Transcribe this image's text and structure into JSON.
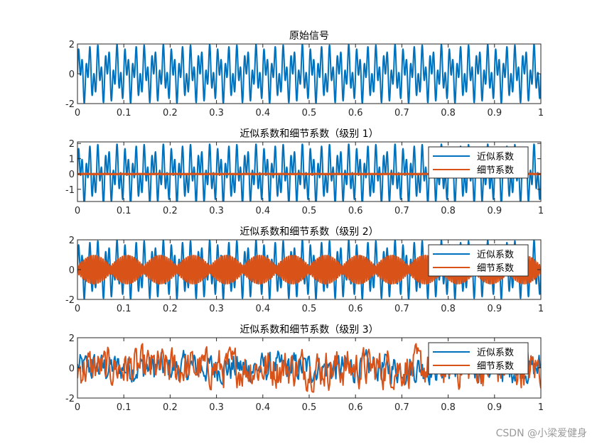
{
  "watermark": "CSDN @小梁爱健身",
  "colors": {
    "approx": "#0072BD",
    "detail": "#D95319",
    "axis": "#262626"
  },
  "chart_data": [
    {
      "type": "line",
      "title": "原始信号",
      "xlim": [
        0,
        1
      ],
      "ylim": [
        -2,
        2
      ],
      "xticks": [
        0,
        0.1,
        0.2,
        0.3,
        0.4,
        0.5,
        0.6,
        0.7,
        0.8,
        0.9,
        1
      ],
      "xtick_labels": [
        "0",
        "0.1",
        "0.2",
        "0.3",
        "0.4",
        "0.5",
        "0.6",
        "0.7",
        "0.8",
        "0.9",
        "1"
      ],
      "yticks": [
        -2,
        0,
        2
      ],
      "ytick_labels": [
        "-2",
        "0",
        "2"
      ],
      "legend": null,
      "series": [
        {
          "role": "approx",
          "style": "signal",
          "amplitude": 1.0,
          "frequencies_hz": [
            50,
            120
          ]
        }
      ]
    },
    {
      "type": "line",
      "title": "近似系数和细节系数（级别 1）",
      "xlim": [
        0,
        1
      ],
      "ylim": [
        -1.8,
        2.1
      ],
      "xticks": [
        0,
        0.1,
        0.2,
        0.3,
        0.4,
        0.5,
        0.6,
        0.7,
        0.8,
        0.9,
        1
      ],
      "xtick_labels": [
        "0",
        "0.1",
        "0.2",
        "0.3",
        "0.4",
        "0.5",
        "0.6",
        "0.7",
        "0.8",
        "0.9",
        "1"
      ],
      "yticks": [
        -1,
        0,
        1,
        2
      ],
      "ytick_labels": [
        "-1",
        "0",
        "1",
        "2"
      ],
      "legend": {
        "position": "top-right",
        "entries": [
          "近似系数",
          "细节系数"
        ]
      },
      "series": [
        {
          "name": "近似系数",
          "role": "approx",
          "style": "signal",
          "amplitude": 1.0,
          "frequencies_hz": [
            50,
            120
          ]
        },
        {
          "name": "细节系数",
          "role": "detail",
          "style": "flat",
          "amplitude": 0.04
        }
      ]
    },
    {
      "type": "line",
      "title": "近似系数和细节系数（级别 2）",
      "xlim": [
        0,
        1
      ],
      "ylim": [
        -2,
        2
      ],
      "xticks": [
        0,
        0.1,
        0.2,
        0.3,
        0.4,
        0.5,
        0.6,
        0.7,
        0.8,
        0.9,
        1
      ],
      "xtick_labels": [
        "0",
        "0.1",
        "0.2",
        "0.3",
        "0.4",
        "0.5",
        "0.6",
        "0.7",
        "0.8",
        "0.9",
        "1"
      ],
      "yticks": [
        -2,
        0,
        2
      ],
      "ytick_labels": [
        "-2",
        "0",
        "2"
      ],
      "legend": {
        "position": "top-right",
        "entries": [
          "近似系数",
          "细节系数"
        ]
      },
      "series": [
        {
          "name": "近似系数",
          "role": "approx",
          "style": "signal",
          "amplitude": 1.0,
          "frequencies_hz": [
            50,
            120
          ]
        },
        {
          "name": "细节系数",
          "role": "detail",
          "style": "beat",
          "amplitude": 1.0,
          "carrier_hz": 240,
          "beat_hz": 14
        }
      ]
    },
    {
      "type": "line",
      "title": "近似系数和细节系数（级别 3）",
      "xlim": [
        0,
        1
      ],
      "ylim": [
        -2,
        2
      ],
      "xticks": [
        0,
        0.1,
        0.2,
        0.3,
        0.4,
        0.5,
        0.6,
        0.7,
        0.8,
        0.9,
        1
      ],
      "xtick_labels": [
        "0",
        "0.1",
        "0.2",
        "0.3",
        "0.4",
        "0.5",
        "0.6",
        "0.7",
        "0.8",
        "0.9",
        "1"
      ],
      "yticks": [
        -2,
        0,
        2
      ],
      "ytick_labels": [
        "-2",
        "0",
        "2"
      ],
      "legend": {
        "position": "top-right",
        "entries": [
          "近似系数",
          "细节系数"
        ]
      },
      "series": [
        {
          "name": "近似系数",
          "role": "approx",
          "style": "noisy",
          "amplitude": 0.75
        },
        {
          "name": "细节系数",
          "role": "detail",
          "style": "noisy",
          "amplitude": 1.0
        }
      ]
    }
  ]
}
